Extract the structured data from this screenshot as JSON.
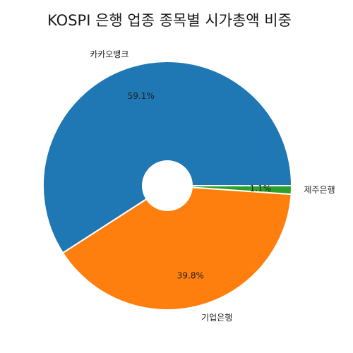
{
  "chart_data": {
    "type": "pie",
    "title": "KOSPI 은행 업종 종목별 시가총액 비중",
    "slices": [
      {
        "label": "카카오뱅크",
        "value": 59.1,
        "pct_text": "59.1%",
        "color": "#1f77b4"
      },
      {
        "label": "기업은행",
        "value": 39.8,
        "pct_text": "39.8%",
        "color": "#ff7f0e"
      },
      {
        "label": "제주은행",
        "value": 1.1,
        "pct_text": "1.1%",
        "color": "#2ca02c"
      }
    ],
    "donut_hole": true,
    "start_angle_deg": 0,
    "direction": "counterclockwise",
    "slice_edge_color": "#ffffff"
  }
}
